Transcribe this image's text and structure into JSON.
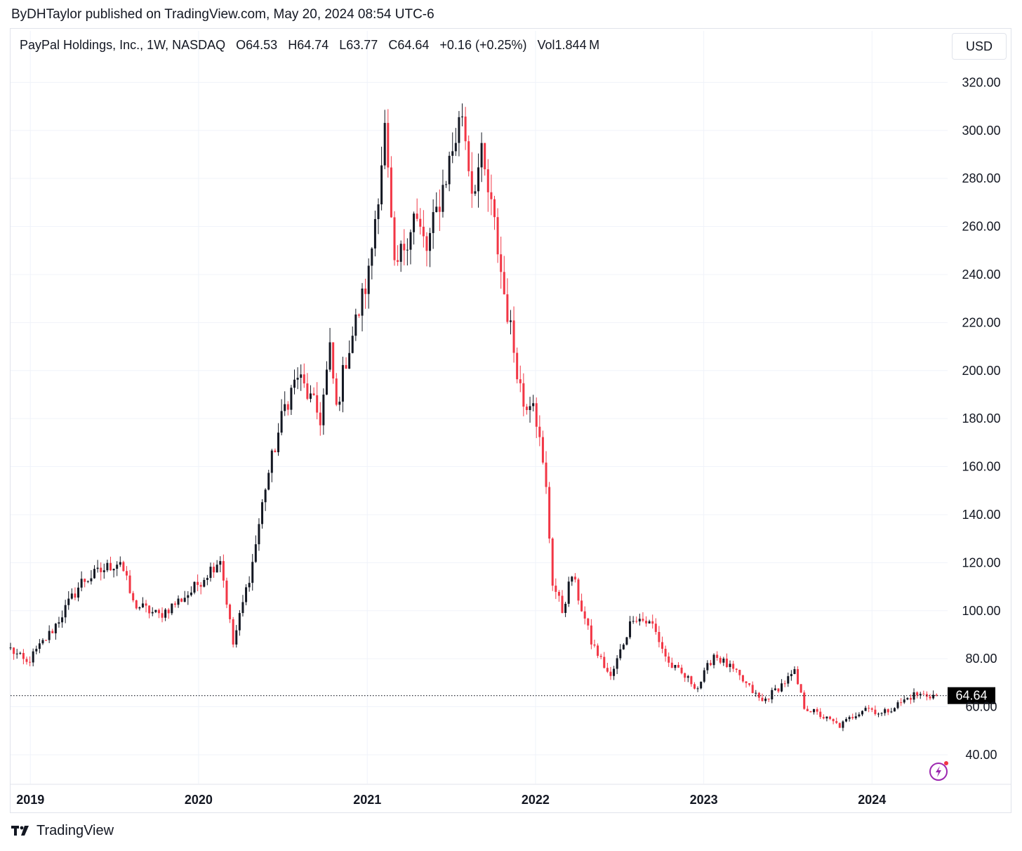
{
  "header": {
    "published": "ByDHTaylor published on TradingView.com, May 20, 2024 08:54 UTC-6"
  },
  "legend": {
    "symbol": "PayPal Holdings, Inc., 1W, NASDAQ",
    "open": "O64.53",
    "high": "H64.74",
    "low": "L63.77",
    "close": "C64.64",
    "change": "+0.16 (+0.25%)",
    "volume": "Vol1.844 M"
  },
  "currency_button": "USD",
  "footer": {
    "brand": "TradingView"
  },
  "colors": {
    "up": "#131722",
    "down": "#f23645",
    "grid": "#f0f3fa",
    "axis": "#e0e3eb"
  },
  "icons": {
    "logo": "tradingview-logo-icon",
    "lightning": "lightning-bolt-icon"
  },
  "chart_data": {
    "type": "candlestick",
    "timeframe": "1W",
    "y_axis_ticks": [
      "320.00",
      "300.00",
      "280.00",
      "260.00",
      "240.00",
      "220.00",
      "200.00",
      "180.00",
      "160.00",
      "140.00",
      "120.00",
      "100.00",
      "80.00",
      "60.00",
      "40.00"
    ],
    "ylim": [
      28,
      328
    ],
    "x_axis_ticks": [
      "2019",
      "2020",
      "2021",
      "2022",
      "2023",
      "2024"
    ],
    "xlim": [
      "2018-11-19",
      "2024-06-10"
    ],
    "last_price": {
      "value": 64.64,
      "label": "64.64"
    },
    "anchors": [
      [
        "2018-11-19",
        84
      ],
      [
        "2018-12-24",
        78
      ],
      [
        "2019-02-18",
        92
      ],
      [
        "2019-04-22",
        112
      ],
      [
        "2019-07-15",
        121
      ],
      [
        "2019-08-12",
        103
      ],
      [
        "2019-10-07",
        98
      ],
      [
        "2019-12-16",
        108
      ],
      [
        "2020-02-17",
        122
      ],
      [
        "2020-03-16",
        86
      ],
      [
        "2020-04-27",
        120
      ],
      [
        "2020-05-25",
        152
      ],
      [
        "2020-07-06",
        185
      ],
      [
        "2020-08-03",
        198
      ],
      [
        "2020-09-21",
        180
      ],
      [
        "2020-10-12",
        208
      ],
      [
        "2020-10-26",
        184
      ],
      [
        "2020-11-16",
        205
      ],
      [
        "2021-01-04",
        240
      ],
      [
        "2021-02-08",
        300
      ],
      [
        "2021-03-01",
        240
      ],
      [
        "2021-04-12",
        265
      ],
      [
        "2021-05-10",
        250
      ],
      [
        "2021-07-26",
        308
      ],
      [
        "2021-08-16",
        276
      ],
      [
        "2021-09-06",
        288
      ],
      [
        "2021-10-04",
        260
      ],
      [
        "2021-10-25",
        232
      ],
      [
        "2021-12-06",
        186
      ],
      [
        "2021-12-27",
        190
      ],
      [
        "2022-01-24",
        150
      ],
      [
        "2022-02-07",
        112
      ],
      [
        "2022-02-28",
        100
      ],
      [
        "2022-03-21",
        115
      ],
      [
        "2022-05-02",
        87
      ],
      [
        "2022-06-13",
        72
      ],
      [
        "2022-08-01",
        98
      ],
      [
        "2022-09-12",
        94
      ],
      [
        "2022-10-17",
        78
      ],
      [
        "2022-12-19",
        68
      ],
      [
        "2023-01-23",
        82
      ],
      [
        "2023-03-06",
        75
      ],
      [
        "2023-05-08",
        62
      ],
      [
        "2023-07-17",
        74
      ],
      [
        "2023-08-07",
        60
      ],
      [
        "2023-10-23",
        52
      ],
      [
        "2023-12-18",
        60
      ],
      [
        "2024-01-22",
        57
      ],
      [
        "2024-04-01",
        65
      ],
      [
        "2024-05-20",
        64.64
      ]
    ]
  }
}
